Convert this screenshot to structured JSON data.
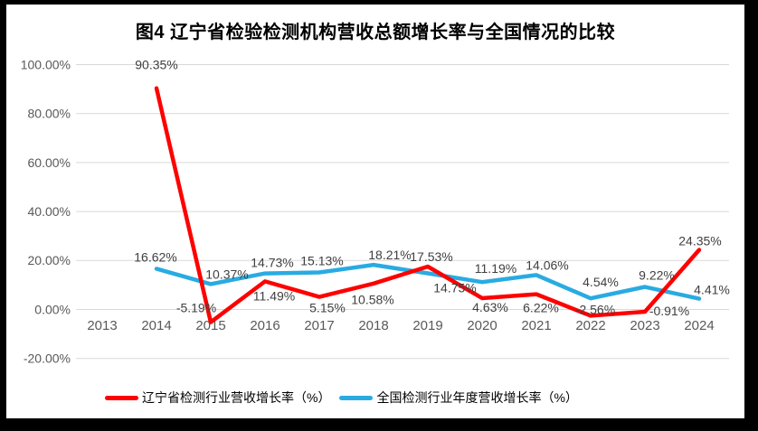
{
  "frame": {
    "border_color": "#000000",
    "canvas_color": "#FFFFFF"
  },
  "chart": {
    "title": "图4 辽宁省检验检测机构营收总额增长率与全国情况的比较"
  },
  "chart_data": {
    "type": "line",
    "title": "图4 辽宁省检验检测机构营收总额增长率与全国情况的比较",
    "categories": [
      "2013",
      "2014",
      "2015",
      "2016",
      "2017",
      "2018",
      "2019",
      "2020",
      "2021",
      "2022",
      "2023",
      "2024"
    ],
    "xlabel": "",
    "ylabel": "",
    "ylim": [
      -20,
      100
    ],
    "grid": true,
    "legend_position": "bottom",
    "y_ticks": [
      {
        "value": 100,
        "label": "100.00%"
      },
      {
        "value": 80,
        "label": "80.00%"
      },
      {
        "value": 60,
        "label": "60.00%"
      },
      {
        "value": 40,
        "label": "40.00%"
      },
      {
        "value": 20,
        "label": "20.00%"
      },
      {
        "value": 0,
        "label": "0.00%"
      },
      {
        "value": -20,
        "label": "-20.00%"
      }
    ],
    "colors": {
      "gridline": "#D9D9D9",
      "axis_text": "#595959",
      "label_text": "#404040"
    },
    "series": [
      {
        "name": "辽宁省检测行业营收增长率（%）",
        "color": "#FF0000",
        "x": [
          2014,
          2015,
          2016,
          2017,
          2018,
          2019,
          2020,
          2021,
          2022,
          2023,
          2024
        ],
        "values": [
          90.35,
          -5.19,
          11.49,
          5.15,
          10.58,
          17.53,
          4.63,
          6.22,
          -2.56,
          -0.91,
          24.35
        ],
        "labels": [
          "90.35%",
          "-5.19%",
          "11.49%",
          "5.15%",
          "10.58%",
          "17.53%",
          "4.63%",
          "6.22%",
          "-2.56%",
          "-0.91%",
          "24.35%"
        ],
        "label_offsets": [
          [
            0,
            -26
          ],
          [
            -16,
            -16
          ],
          [
            10,
            16
          ],
          [
            9,
            12
          ],
          [
            -1,
            18
          ],
          [
            4,
            -11
          ],
          [
            9,
            10
          ],
          [
            5,
            15
          ],
          [
            5,
            -7
          ],
          [
            27,
            -1
          ],
          [
            1,
            -10
          ]
        ]
      },
      {
        "name": "全国检测行业年度营收增长率（%）",
        "color": "#29ABE2",
        "x": [
          2014,
          2015,
          2016,
          2017,
          2018,
          2019,
          2020,
          2021,
          2022,
          2023,
          2024
        ],
        "values": [
          16.62,
          10.37,
          14.73,
          15.13,
          18.21,
          14.75,
          11.19,
          14.06,
          4.54,
          9.22,
          4.41
        ],
        "labels": [
          "16.62%",
          "10.37%",
          "14.73%",
          "15.13%",
          "18.21%",
          "14.75%",
          "11.19%",
          "14.06%",
          "4.54%",
          "9.22%",
          "4.41%"
        ],
        "label_offsets": [
          [
            -1,
            -13
          ],
          [
            18,
            -11
          ],
          [
            8,
            -12
          ],
          [
            3,
            -13
          ],
          [
            18,
            -11
          ],
          [
            30,
            16
          ],
          [
            15,
            -15
          ],
          [
            12,
            -11
          ],
          [
            11,
            -18
          ],
          [
            13,
            -13
          ],
          [
            14,
            -10
          ]
        ]
      }
    ]
  }
}
